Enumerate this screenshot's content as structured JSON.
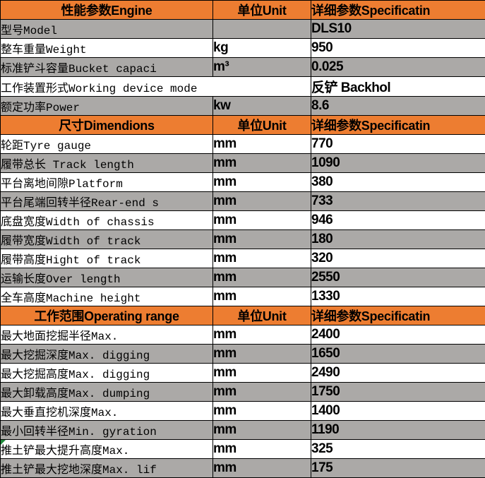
{
  "colors": {
    "header_bg": "#ED7D31",
    "row_alt_bg": "#ABA9A7",
    "row_bg": "#FFFFFF",
    "border": "#000000",
    "error_triangle": "#1F8B3B"
  },
  "columns": {
    "unit_header": "单位Unit",
    "spec_header": "详细参数Specificatin"
  },
  "sections": [
    {
      "title": "性能参数Engine",
      "rows": [
        {
          "label": "型号Model",
          "unit": "",
          "value": "DLS10",
          "shaded": true
        },
        {
          "label": "整车重量Weight",
          "unit": "kg",
          "value": "950",
          "shaded": false
        },
        {
          "label": "标准铲斗容量Bucket capaci",
          "unit": "m³",
          "value": "0.025",
          "shaded": true
        },
        {
          "label": "工作装置形式Working device mode",
          "unit": "",
          "value": "反铲 Backhol",
          "shaded": false,
          "span": true
        },
        {
          "label": "额定功率Power",
          "unit": "kw",
          "value": "8.6",
          "shaded": true
        }
      ]
    },
    {
      "title": "尺寸Dimendions",
      "rows": [
        {
          "label": "轮距Tyre gauge",
          "unit": "mm",
          "value": "770",
          "shaded": false
        },
        {
          "label": "履带总长 Track length",
          "unit": "mm",
          "value": "1090",
          "shaded": true
        },
        {
          "label": "平台离地间隙Platform",
          "unit": "mm",
          "value": "380",
          "shaded": false
        },
        {
          "label": "平台尾端回转半径Rear-end s",
          "unit": "mm",
          "value": "733",
          "shaded": true
        },
        {
          "label": "底盘宽度Width of chassis",
          "unit": "mm",
          "value": "946",
          "shaded": false
        },
        {
          "label": "履带宽度Width of track",
          "unit": "mm",
          "value": "180",
          "shaded": true
        },
        {
          "label": "履带高度Hight of track",
          "unit": "mm",
          "value": "320",
          "shaded": false
        },
        {
          "label": "运输长度Over length",
          "unit": "mm",
          "value": "2550",
          "shaded": true
        },
        {
          "label": "全车高度Machine height",
          "unit": "mm",
          "value": "1330",
          "shaded": false
        }
      ]
    },
    {
      "title": "工作范围Operating range",
      "rows": [
        {
          "label": "最大地面挖掘半径Max.",
          "unit": "mm",
          "value": "2400",
          "shaded": false
        },
        {
          "label": "最大挖掘深度Max. digging",
          "unit": "mm",
          "value": "1650",
          "shaded": true
        },
        {
          "label": "最大挖掘高度Max. digging",
          "unit": "mm",
          "value": "2490",
          "shaded": false
        },
        {
          "label": "最大卸载高度Max. dumping",
          "unit": "mm",
          "value": "1750",
          "shaded": true
        },
        {
          "label": "最大垂直挖机深度Max.",
          "unit": "mm",
          "value": "1400",
          "shaded": false
        },
        {
          "label": "最小回转半径Min. gyration",
          "unit": "mm",
          "value": "1190",
          "shaded": true
        },
        {
          "label": "推土铲最大提升高度Max.",
          "unit": "mm",
          "value": "325",
          "shaded": false,
          "error_flag": true
        },
        {
          "label": "推土铲最大挖地深度Max. lif",
          "unit": "mm",
          "value": "175",
          "shaded": true
        }
      ]
    }
  ]
}
